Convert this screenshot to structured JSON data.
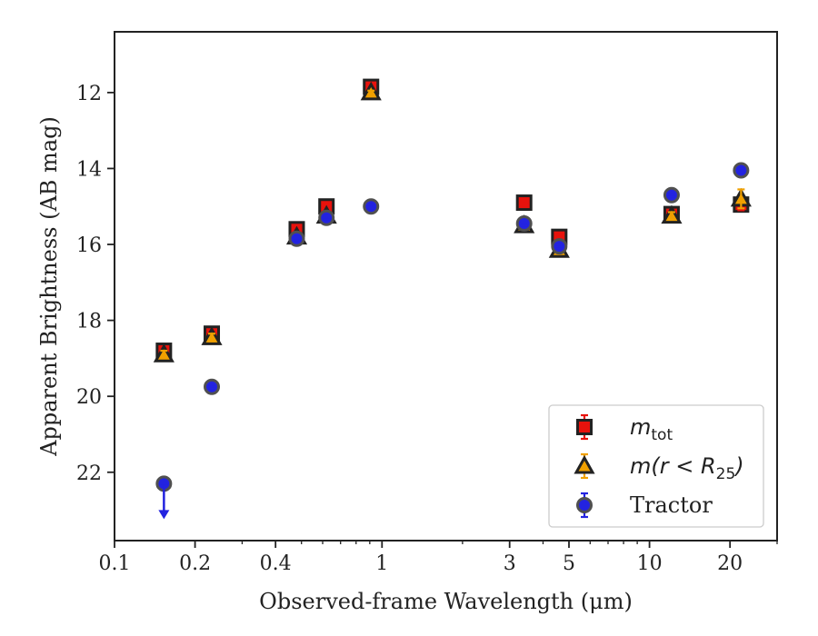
{
  "chart_data": {
    "type": "scatter",
    "xlabel": "Observed-frame Wavelength (μm)",
    "ylabel": "Apparent Brightness (AB mag)",
    "x_scale": "log",
    "xlim": [
      0.1,
      30
    ],
    "ylim": [
      23.8,
      10.4
    ],
    "y_inverted": true,
    "grid": false,
    "legend_position": "lower-right",
    "xticks": [
      {
        "value": 0.1,
        "label": "0.1"
      },
      {
        "value": 0.2,
        "label": "0.2"
      },
      {
        "value": 0.4,
        "label": "0.4"
      },
      {
        "value": 1,
        "label": "1"
      },
      {
        "value": 3,
        "label": "3"
      },
      {
        "value": 5,
        "label": "5"
      },
      {
        "value": 10,
        "label": "10"
      },
      {
        "value": 20,
        "label": "20"
      }
    ],
    "yticks": [
      {
        "value": 12,
        "label": "12"
      },
      {
        "value": 14,
        "label": "14"
      },
      {
        "value": 16,
        "label": "16"
      },
      {
        "value": 18,
        "label": "18"
      },
      {
        "value": 20,
        "label": "20"
      },
      {
        "value": 22,
        "label": "22"
      }
    ],
    "series": [
      {
        "name": "m_tot",
        "legend_math": "m",
        "legend_sub": "tot",
        "marker": "square",
        "face_color": "#e8120c",
        "edge_color": "#222222",
        "err_color": "#e8120c",
        "points": [
          {
            "x": 0.153,
            "y": 18.8,
            "err": 0.1
          },
          {
            "x": 0.231,
            "y": 18.35,
            "err": 0.1
          },
          {
            "x": 0.48,
            "y": 15.6,
            "err": 0.05
          },
          {
            "x": 0.62,
            "y": 15.0,
            "err": 0.05
          },
          {
            "x": 0.91,
            "y": 11.85,
            "err": 0.05
          },
          {
            "x": 3.4,
            "y": 14.9,
            "err": 0.05
          },
          {
            "x": 4.6,
            "y": 15.8,
            "err": 0.05
          },
          {
            "x": 12.1,
            "y": 15.2,
            "err": 0.1
          },
          {
            "x": 22.0,
            "y": 14.95,
            "err": 0.15
          }
        ]
      },
      {
        "name": "m(r < R_25)",
        "legend_math": "m(r < R",
        "legend_sub": "25",
        "legend_math_tail": ")",
        "marker": "triangle",
        "face_color": "#f0a000",
        "edge_color": "#222222",
        "err_color": "#f0a000",
        "points": [
          {
            "x": 0.153,
            "y": 18.9,
            "err": 0.1
          },
          {
            "x": 0.231,
            "y": 18.45,
            "err": 0.1
          },
          {
            "x": 0.48,
            "y": 15.8,
            "err": 0.05
          },
          {
            "x": 0.62,
            "y": 15.25,
            "err": 0.05
          },
          {
            "x": 0.91,
            "y": 12.0,
            "err": 0.05
          },
          {
            "x": 3.4,
            "y": 15.5,
            "err": 0.05
          },
          {
            "x": 4.6,
            "y": 16.15,
            "err": 0.05
          },
          {
            "x": 12.1,
            "y": 15.25,
            "err": 0.1
          },
          {
            "x": 22.0,
            "y": 14.8,
            "err": 0.25
          }
        ]
      },
      {
        "name": "Tractor",
        "marker": "circle",
        "face_color": "#2323e0",
        "edge_color": "#505050",
        "err_color": "#2323e0",
        "points": [
          {
            "x": 0.153,
            "y": 22.3,
            "err": 0,
            "upper_limit": true
          },
          {
            "x": 0.231,
            "y": 19.75,
            "err": 0.05
          },
          {
            "x": 0.48,
            "y": 15.85,
            "err": 0.05
          },
          {
            "x": 0.62,
            "y": 15.3,
            "err": 0.05
          },
          {
            "x": 0.91,
            "y": 15.0,
            "err": 0.05
          },
          {
            "x": 3.4,
            "y": 15.45,
            "err": 0.05
          },
          {
            "x": 4.6,
            "y": 16.05,
            "err": 0.05
          },
          {
            "x": 12.1,
            "y": 14.7,
            "err": 0.05
          },
          {
            "x": 22.0,
            "y": 14.05,
            "err": 0.05
          }
        ]
      }
    ]
  }
}
